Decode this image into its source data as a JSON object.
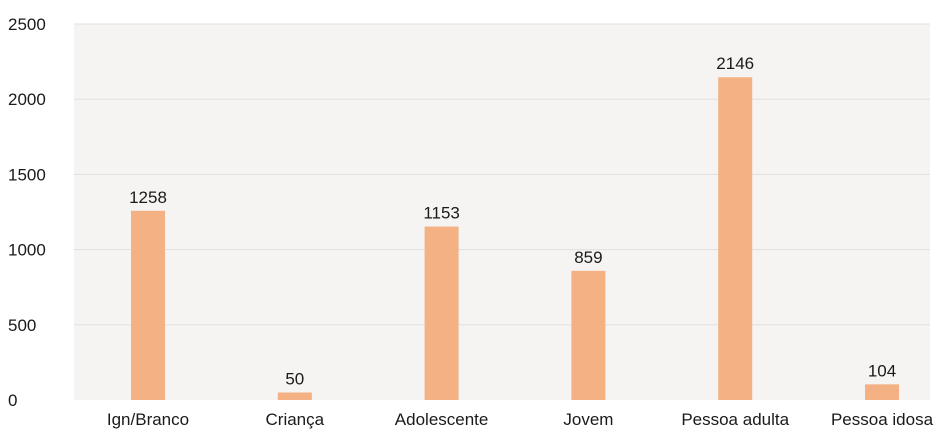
{
  "chart_data": {
    "type": "bar",
    "categories": [
      "Ign/Branco",
      "Criança",
      "Adolescente",
      "Jovem",
      "Pessoa adulta",
      "Pessoa idosa"
    ],
    "values": [
      1258,
      50,
      1153,
      859,
      2146,
      104
    ],
    "data_labels": [
      "1258",
      "50",
      "1153",
      "859",
      "2146",
      "104"
    ],
    "title": "",
    "xlabel": "",
    "ylabel": "",
    "ylim": [
      0,
      2500
    ],
    "y_ticks": [
      0,
      500,
      1000,
      1500,
      2000,
      2500
    ],
    "y_tick_labels": [
      "0",
      "500",
      "1000",
      "1500",
      "2000",
      "2500"
    ],
    "grid": true,
    "legend": "none",
    "colors": {
      "bar": "#F4B183",
      "plot_background": "#F5F4F3",
      "gridline": "#E2E0DE",
      "text": "#1A1A1A"
    }
  }
}
